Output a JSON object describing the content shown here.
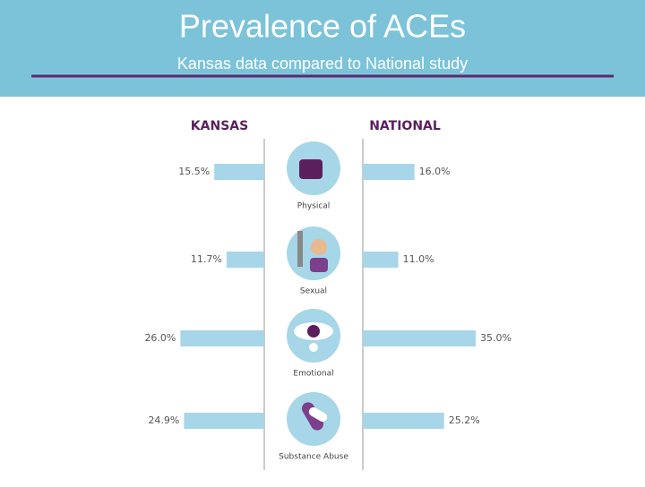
{
  "chart_data": {
    "type": "butterfly",
    "title": "Prevalence of ACEs",
    "subtitle": "Kansas data compared to National study",
    "categories": [
      "Physical",
      "Sexual",
      "Emotional",
      "Substance Abuse"
    ],
    "series": [
      {
        "name": "KANSAS",
        "color": "#a6d6e7",
        "values": [
          15.5,
          11.7,
          26.0,
          24.9
        ],
        "value_labels": [
          "15.5%",
          "11.7%",
          "26.0%",
          "24.9%"
        ]
      },
      {
        "name": "NATIONAL",
        "color": "#a6d6e7",
        "values": [
          16.0,
          11.0,
          35.0,
          25.2
        ],
        "value_labels": [
          "16.0%",
          "11.0%",
          "35.0%",
          "25.2%"
        ]
      }
    ]
  }
}
